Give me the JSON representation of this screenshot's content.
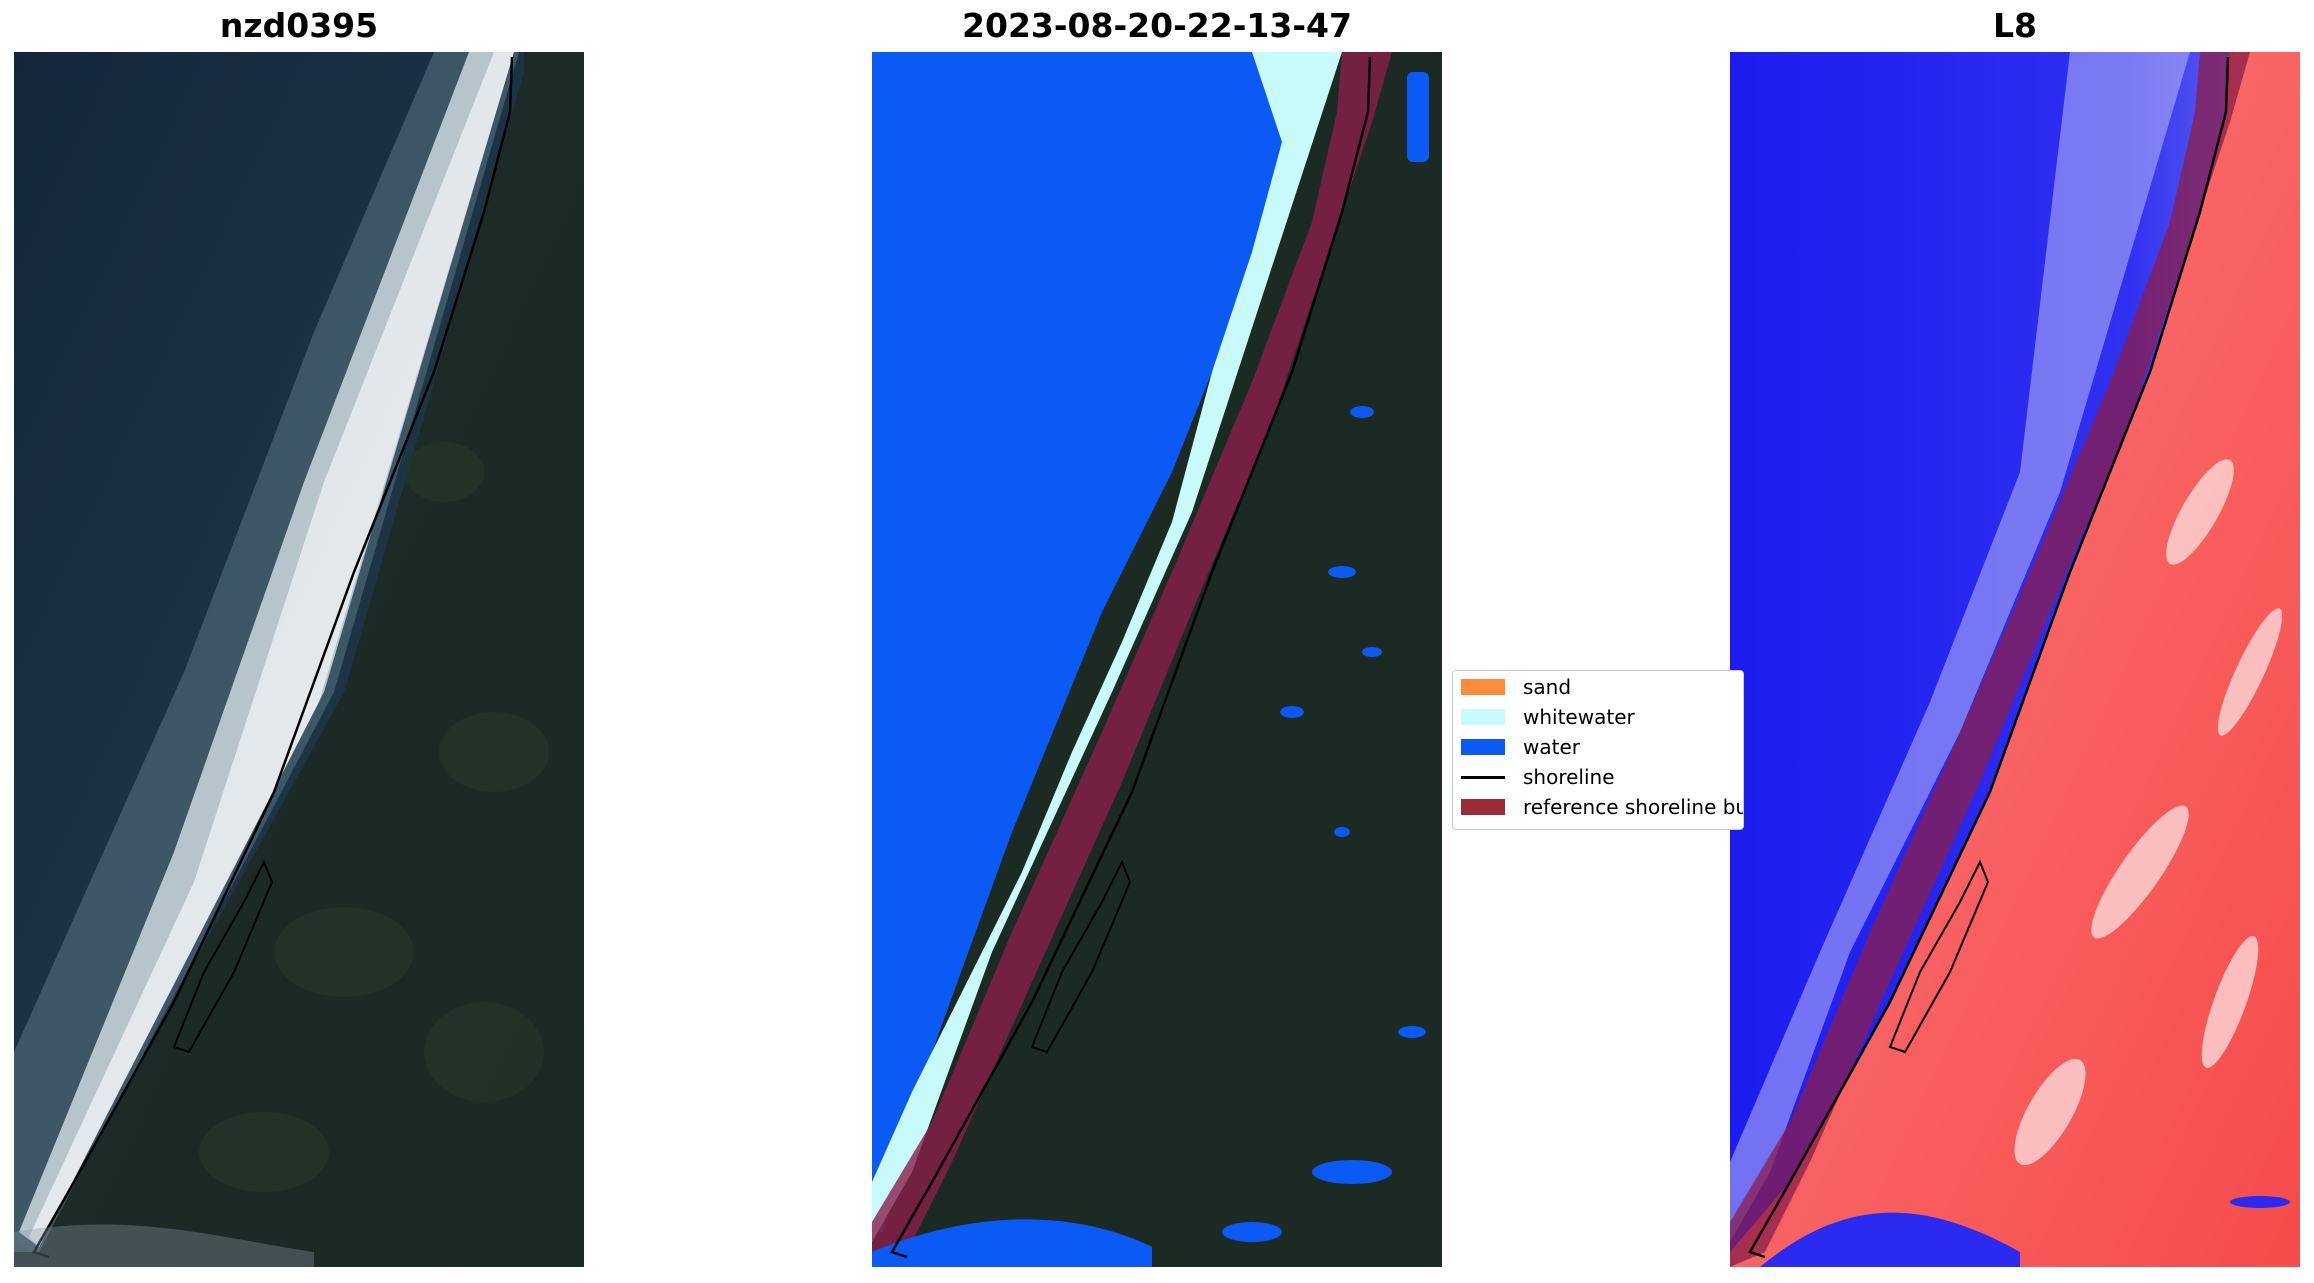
{
  "panels": [
    {
      "title": "nzd0395",
      "kind": "rgb-image"
    },
    {
      "title": "2023-08-20-22-13-47",
      "kind": "classified-image"
    },
    {
      "title": "L8",
      "kind": "index-image"
    }
  ],
  "legend": {
    "items": [
      {
        "label": "sand",
        "color": "#ff8c3c",
        "kind": "patch"
      },
      {
        "label": "whitewater",
        "color": "#c8fafa",
        "kind": "patch"
      },
      {
        "label": "water",
        "color": "#0b5af5",
        "kind": "patch"
      },
      {
        "label": "shoreline",
        "color": "#000000",
        "kind": "line"
      },
      {
        "label": "reference shoreline buffer",
        "color": "#9b2b35",
        "kind": "patch"
      }
    ]
  },
  "colors": {
    "land_dark": "#1c2a24",
    "ocean_dark": "#1a2d3c",
    "surf": "#dfe9ef",
    "water": "#0b5af5",
    "whitewater": "#c8fafa",
    "buffer": "#8a1e4a",
    "index_blue": "#2a2af0",
    "index_red": "#f85a5a"
  }
}
